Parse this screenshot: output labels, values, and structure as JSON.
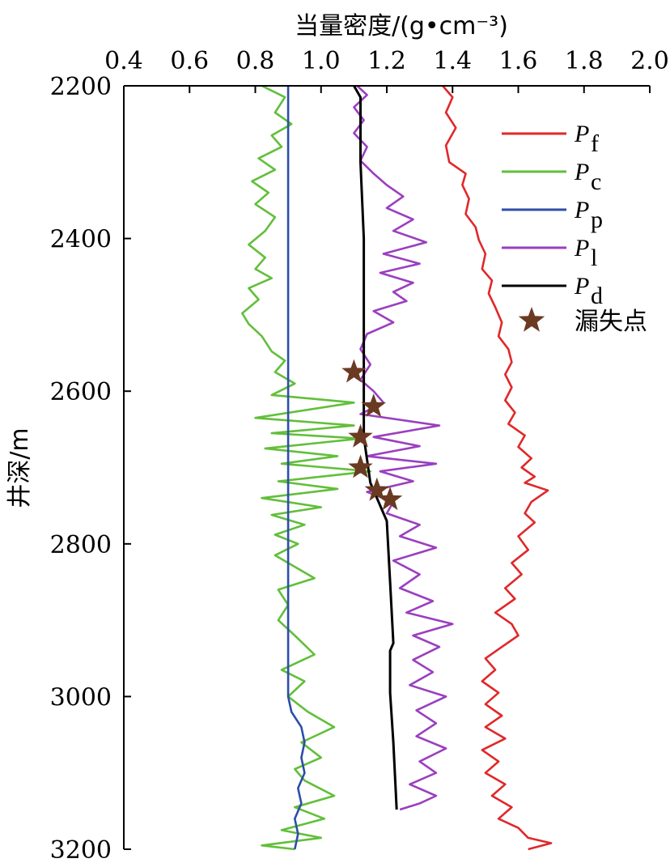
{
  "chart_data": {
    "type": "line",
    "xlabel": "当量密度/(g•cm⁻³)",
    "ylabel": "井深/m",
    "xlim": [
      0.4,
      2.0
    ],
    "ylim": [
      2200,
      3200
    ],
    "x_orientation": "top",
    "y_inverted": true,
    "x_ticks": [
      "0.4",
      "0.6",
      "0.8",
      "1.0",
      "1.2",
      "1.4",
      "1.6",
      "1.8",
      "2.0"
    ],
    "y_ticks": [
      "2200",
      "2400",
      "2600",
      "2800",
      "3000",
      "3200"
    ],
    "legend_position": "top-right",
    "grid": false,
    "series": [
      {
        "name": "P_f",
        "label_main": "P",
        "label_sub": "f",
        "color": "#e0282a",
        "points": [
          [
            1.37,
            2200
          ],
          [
            1.4,
            2215
          ],
          [
            1.38,
            2235
          ],
          [
            1.41,
            2255
          ],
          [
            1.38,
            2278
          ],
          [
            1.39,
            2300
          ],
          [
            1.44,
            2315
          ],
          [
            1.43,
            2330
          ],
          [
            1.45,
            2348
          ],
          [
            1.44,
            2368
          ],
          [
            1.47,
            2385
          ],
          [
            1.48,
            2402
          ],
          [
            1.5,
            2420
          ],
          [
            1.49,
            2440
          ],
          [
            1.52,
            2455
          ],
          [
            1.51,
            2472
          ],
          [
            1.53,
            2490
          ],
          [
            1.55,
            2510
          ],
          [
            1.54,
            2528
          ],
          [
            1.57,
            2545
          ],
          [
            1.58,
            2562
          ],
          [
            1.56,
            2578
          ],
          [
            1.58,
            2595
          ],
          [
            1.56,
            2612
          ],
          [
            1.59,
            2628
          ],
          [
            1.57,
            2643
          ],
          [
            1.62,
            2658
          ],
          [
            1.6,
            2673
          ],
          [
            1.64,
            2688
          ],
          [
            1.61,
            2700
          ],
          [
            1.65,
            2712
          ],
          [
            1.62,
            2720
          ],
          [
            1.69,
            2730
          ],
          [
            1.64,
            2745
          ],
          [
            1.62,
            2760
          ],
          [
            1.65,
            2772
          ],
          [
            1.6,
            2790
          ],
          [
            1.63,
            2808
          ],
          [
            1.58,
            2825
          ],
          [
            1.61,
            2840
          ],
          [
            1.56,
            2858
          ],
          [
            1.59,
            2872
          ],
          [
            1.53,
            2890
          ],
          [
            1.58,
            2905
          ],
          [
            1.6,
            2920
          ],
          [
            1.55,
            2935
          ],
          [
            1.5,
            2950
          ],
          [
            1.53,
            2965
          ],
          [
            1.49,
            2980
          ],
          [
            1.54,
            2995
          ],
          [
            1.5,
            3010
          ],
          [
            1.55,
            3025
          ],
          [
            1.5,
            3040
          ],
          [
            1.56,
            3055
          ],
          [
            1.49,
            3070
          ],
          [
            1.54,
            3085
          ],
          [
            1.5,
            3100
          ],
          [
            1.56,
            3115
          ],
          [
            1.52,
            3130
          ],
          [
            1.58,
            3145
          ],
          [
            1.54,
            3160
          ],
          [
            1.6,
            3172
          ],
          [
            1.63,
            3185
          ],
          [
            1.7,
            3192
          ],
          [
            1.63,
            3200
          ]
        ]
      },
      {
        "name": "P_c",
        "label_main": "P",
        "label_sub": "c",
        "color": "#62bf3a",
        "points": [
          [
            0.82,
            2200
          ],
          [
            0.89,
            2215
          ],
          [
            0.86,
            2235
          ],
          [
            0.91,
            2250
          ],
          [
            0.85,
            2265
          ],
          [
            0.88,
            2280
          ],
          [
            0.81,
            2295
          ],
          [
            0.86,
            2310
          ],
          [
            0.79,
            2325
          ],
          [
            0.84,
            2340
          ],
          [
            0.8,
            2355
          ],
          [
            0.86,
            2372
          ],
          [
            0.83,
            2390
          ],
          [
            0.78,
            2408
          ],
          [
            0.83,
            2425
          ],
          [
            0.8,
            2440
          ],
          [
            0.85,
            2452
          ],
          [
            0.78,
            2465
          ],
          [
            0.81,
            2480
          ],
          [
            0.76,
            2498
          ],
          [
            0.78,
            2512
          ],
          [
            0.82,
            2528
          ],
          [
            0.85,
            2548
          ],
          [
            0.89,
            2560
          ],
          [
            0.86,
            2575
          ],
          [
            0.92,
            2590
          ],
          [
            0.85,
            2605
          ],
          [
            1.1,
            2615
          ],
          [
            0.8,
            2635
          ],
          [
            1.1,
            2645
          ],
          [
            0.85,
            2655
          ],
          [
            1.12,
            2662
          ],
          [
            0.83,
            2675
          ],
          [
            1.05,
            2685
          ],
          [
            0.88,
            2695
          ],
          [
            1.15,
            2705
          ],
          [
            0.87,
            2718
          ],
          [
            1.05,
            2728
          ],
          [
            0.82,
            2740
          ],
          [
            1.0,
            2752
          ],
          [
            0.85,
            2762
          ],
          [
            0.95,
            2775
          ],
          [
            0.86,
            2788
          ],
          [
            0.93,
            2800
          ],
          [
            0.86,
            2815
          ],
          [
            0.92,
            2830
          ],
          [
            0.98,
            2845
          ],
          [
            0.87,
            2860
          ],
          [
            0.9,
            2880
          ],
          [
            0.87,
            2900
          ],
          [
            0.92,
            2920
          ],
          [
            0.98,
            2945
          ],
          [
            0.88,
            2965
          ],
          [
            0.95,
            2980
          ],
          [
            0.9,
            3000
          ],
          [
            0.96,
            3020
          ],
          [
            1.04,
            3040
          ],
          [
            0.94,
            3060
          ],
          [
            1.0,
            3080
          ],
          [
            0.92,
            3095
          ],
          [
            0.95,
            3110
          ],
          [
            1.04,
            3130
          ],
          [
            0.92,
            3145
          ],
          [
            1.01,
            3160
          ],
          [
            0.88,
            3175
          ],
          [
            1.0,
            3185
          ],
          [
            0.82,
            3195
          ],
          [
            0.92,
            3200
          ]
        ]
      },
      {
        "name": "P_p",
        "label_main": "P",
        "label_sub": "p",
        "color": "#2d4ea8",
        "points": [
          [
            0.9,
            2200
          ],
          [
            0.9,
            2400
          ],
          [
            0.9,
            2600
          ],
          [
            0.9,
            2800
          ],
          [
            0.9,
            3000
          ],
          [
            0.91,
            3020
          ],
          [
            0.94,
            3040
          ],
          [
            0.95,
            3060
          ],
          [
            0.94,
            3080
          ],
          [
            0.95,
            3100
          ],
          [
            0.93,
            3120
          ],
          [
            0.94,
            3140
          ],
          [
            0.92,
            3160
          ],
          [
            0.93,
            3180
          ],
          [
            0.92,
            3200
          ]
        ]
      },
      {
        "name": "P_l",
        "label_main": "P",
        "label_sub": "l",
        "color": "#9a3fbf",
        "points": [
          [
            1.11,
            2200
          ],
          [
            1.14,
            2212
          ],
          [
            1.1,
            2228
          ],
          [
            1.13,
            2245
          ],
          [
            1.1,
            2262
          ],
          [
            1.14,
            2280
          ],
          [
            1.12,
            2298
          ],
          [
            1.16,
            2315
          ],
          [
            1.2,
            2330
          ],
          [
            1.25,
            2345
          ],
          [
            1.2,
            2360
          ],
          [
            1.28,
            2375
          ],
          [
            1.22,
            2390
          ],
          [
            1.32,
            2405
          ],
          [
            1.19,
            2420
          ],
          [
            1.3,
            2433
          ],
          [
            1.18,
            2445
          ],
          [
            1.28,
            2458
          ],
          [
            1.22,
            2470
          ],
          [
            1.26,
            2482
          ],
          [
            1.16,
            2495
          ],
          [
            1.22,
            2510
          ],
          [
            1.14,
            2525
          ],
          [
            1.12,
            2545
          ],
          [
            1.15,
            2565
          ],
          [
            1.12,
            2585
          ],
          [
            1.16,
            2600
          ],
          [
            1.19,
            2615
          ],
          [
            1.12,
            2630
          ],
          [
            1.36,
            2645
          ],
          [
            1.16,
            2660
          ],
          [
            1.3,
            2672
          ],
          [
            1.14,
            2685
          ],
          [
            1.35,
            2695
          ],
          [
            1.18,
            2705
          ],
          [
            1.28,
            2718
          ],
          [
            1.14,
            2732
          ],
          [
            1.22,
            2745
          ],
          [
            1.2,
            2760
          ],
          [
            1.3,
            2775
          ],
          [
            1.24,
            2790
          ],
          [
            1.35,
            2805
          ],
          [
            1.22,
            2822
          ],
          [
            1.3,
            2840
          ],
          [
            1.24,
            2858
          ],
          [
            1.34,
            2875
          ],
          [
            1.26,
            2890
          ],
          [
            1.4,
            2905
          ],
          [
            1.28,
            2920
          ],
          [
            1.36,
            2935
          ],
          [
            1.28,
            2952
          ],
          [
            1.34,
            2968
          ],
          [
            1.27,
            2985
          ],
          [
            1.38,
            3000
          ],
          [
            1.29,
            3018
          ],
          [
            1.35,
            3035
          ],
          [
            1.29,
            3052
          ],
          [
            1.38,
            3068
          ],
          [
            1.3,
            3085
          ],
          [
            1.35,
            3100
          ],
          [
            1.27,
            3115
          ],
          [
            1.35,
            3130
          ],
          [
            1.3,
            3140
          ],
          [
            1.24,
            3148
          ]
        ]
      },
      {
        "name": "P_d",
        "label_main": "P",
        "label_sub": "d",
        "color": "#000000",
        "points": [
          [
            1.1,
            2200
          ],
          [
            1.12,
            2215
          ],
          [
            1.12,
            2300
          ],
          [
            1.13,
            2400
          ],
          [
            1.13,
            2500
          ],
          [
            1.13,
            2600
          ],
          [
            1.13,
            2660
          ],
          [
            1.15,
            2720
          ],
          [
            1.2,
            2770
          ],
          [
            1.21,
            2850
          ],
          [
            1.22,
            2930
          ],
          [
            1.21,
            2940
          ],
          [
            1.21,
            2995
          ],
          [
            1.22,
            3060
          ],
          [
            1.23,
            3148
          ]
        ]
      }
    ],
    "markers": {
      "name": "漏失点",
      "color": "#6b3a22",
      "points": [
        [
          1.1,
          2575
        ],
        [
          1.16,
          2620
        ],
        [
          1.12,
          2660
        ],
        [
          1.12,
          2700
        ],
        [
          1.17,
          2730
        ],
        [
          1.21,
          2742
        ]
      ]
    }
  }
}
